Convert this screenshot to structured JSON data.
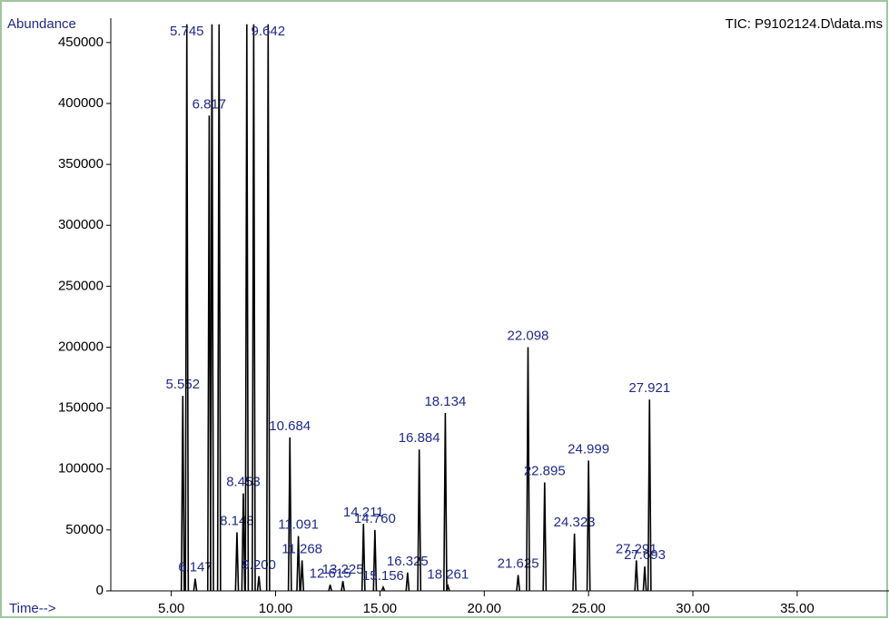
{
  "chart_data": {
    "type": "chromatogram",
    "title": "TIC: P9102124.D\\data.ms",
    "y_label": "Abundance",
    "x_label": "Time-->",
    "color": "#000000",
    "label_color": "#1f2a8a",
    "xlim": [
      2.1,
      39.4
    ],
    "ylim": [
      0,
      470000
    ],
    "xticks": [
      {
        "value": 5,
        "label": "5.00"
      },
      {
        "value": 10,
        "label": "10.00"
      },
      {
        "value": 15,
        "label": "15.00"
      },
      {
        "value": 20,
        "label": "20.00"
      },
      {
        "value": 25,
        "label": "25.00"
      },
      {
        "value": 30,
        "label": "30.00"
      },
      {
        "value": 35,
        "label": "35.00"
      }
    ],
    "yticks": [
      0,
      50000,
      100000,
      150000,
      200000,
      250000,
      300000,
      350000,
      400000,
      450000
    ],
    "x": [
      5.552,
      5.745,
      6.147,
      6.817,
      6.95,
      7.29,
      8.148,
      8.453,
      8.62,
      8.95,
      9.2,
      9.642,
      10.684,
      11.091,
      11.268,
      12.615,
      13.225,
      14.211,
      14.76,
      15.156,
      16.325,
      16.884,
      18.134,
      18.261,
      21.625,
      22.098,
      22.895,
      24.323,
      24.999,
      27.291,
      27.693,
      27.921
    ],
    "values": [
      160000,
      465000,
      10000,
      390000,
      465000,
      465000,
      48000,
      80000,
      465000,
      465000,
      12000,
      465000,
      126000,
      45000,
      25000,
      5000,
      8000,
      55000,
      50000,
      3000,
      15000,
      116000,
      146000,
      4000,
      13000,
      200000,
      89000,
      47000,
      107000,
      25000,
      20000,
      157000
    ],
    "peak_labels": [
      "5.552",
      "5.745",
      "6.147",
      "6.817",
      null,
      null,
      "8.148",
      "8.453",
      null,
      null,
      "9.200",
      "9.642",
      "10.684",
      "11.091",
      "11.268",
      "12.615",
      "13.225",
      "14.211",
      "14.760",
      "15.156",
      "16.325",
      "16.884",
      "18.134",
      "18.261",
      "21.625",
      "22.098",
      "22.895",
      "24.323",
      "24.999",
      "27.291",
      "27.693",
      "27.921"
    ]
  }
}
